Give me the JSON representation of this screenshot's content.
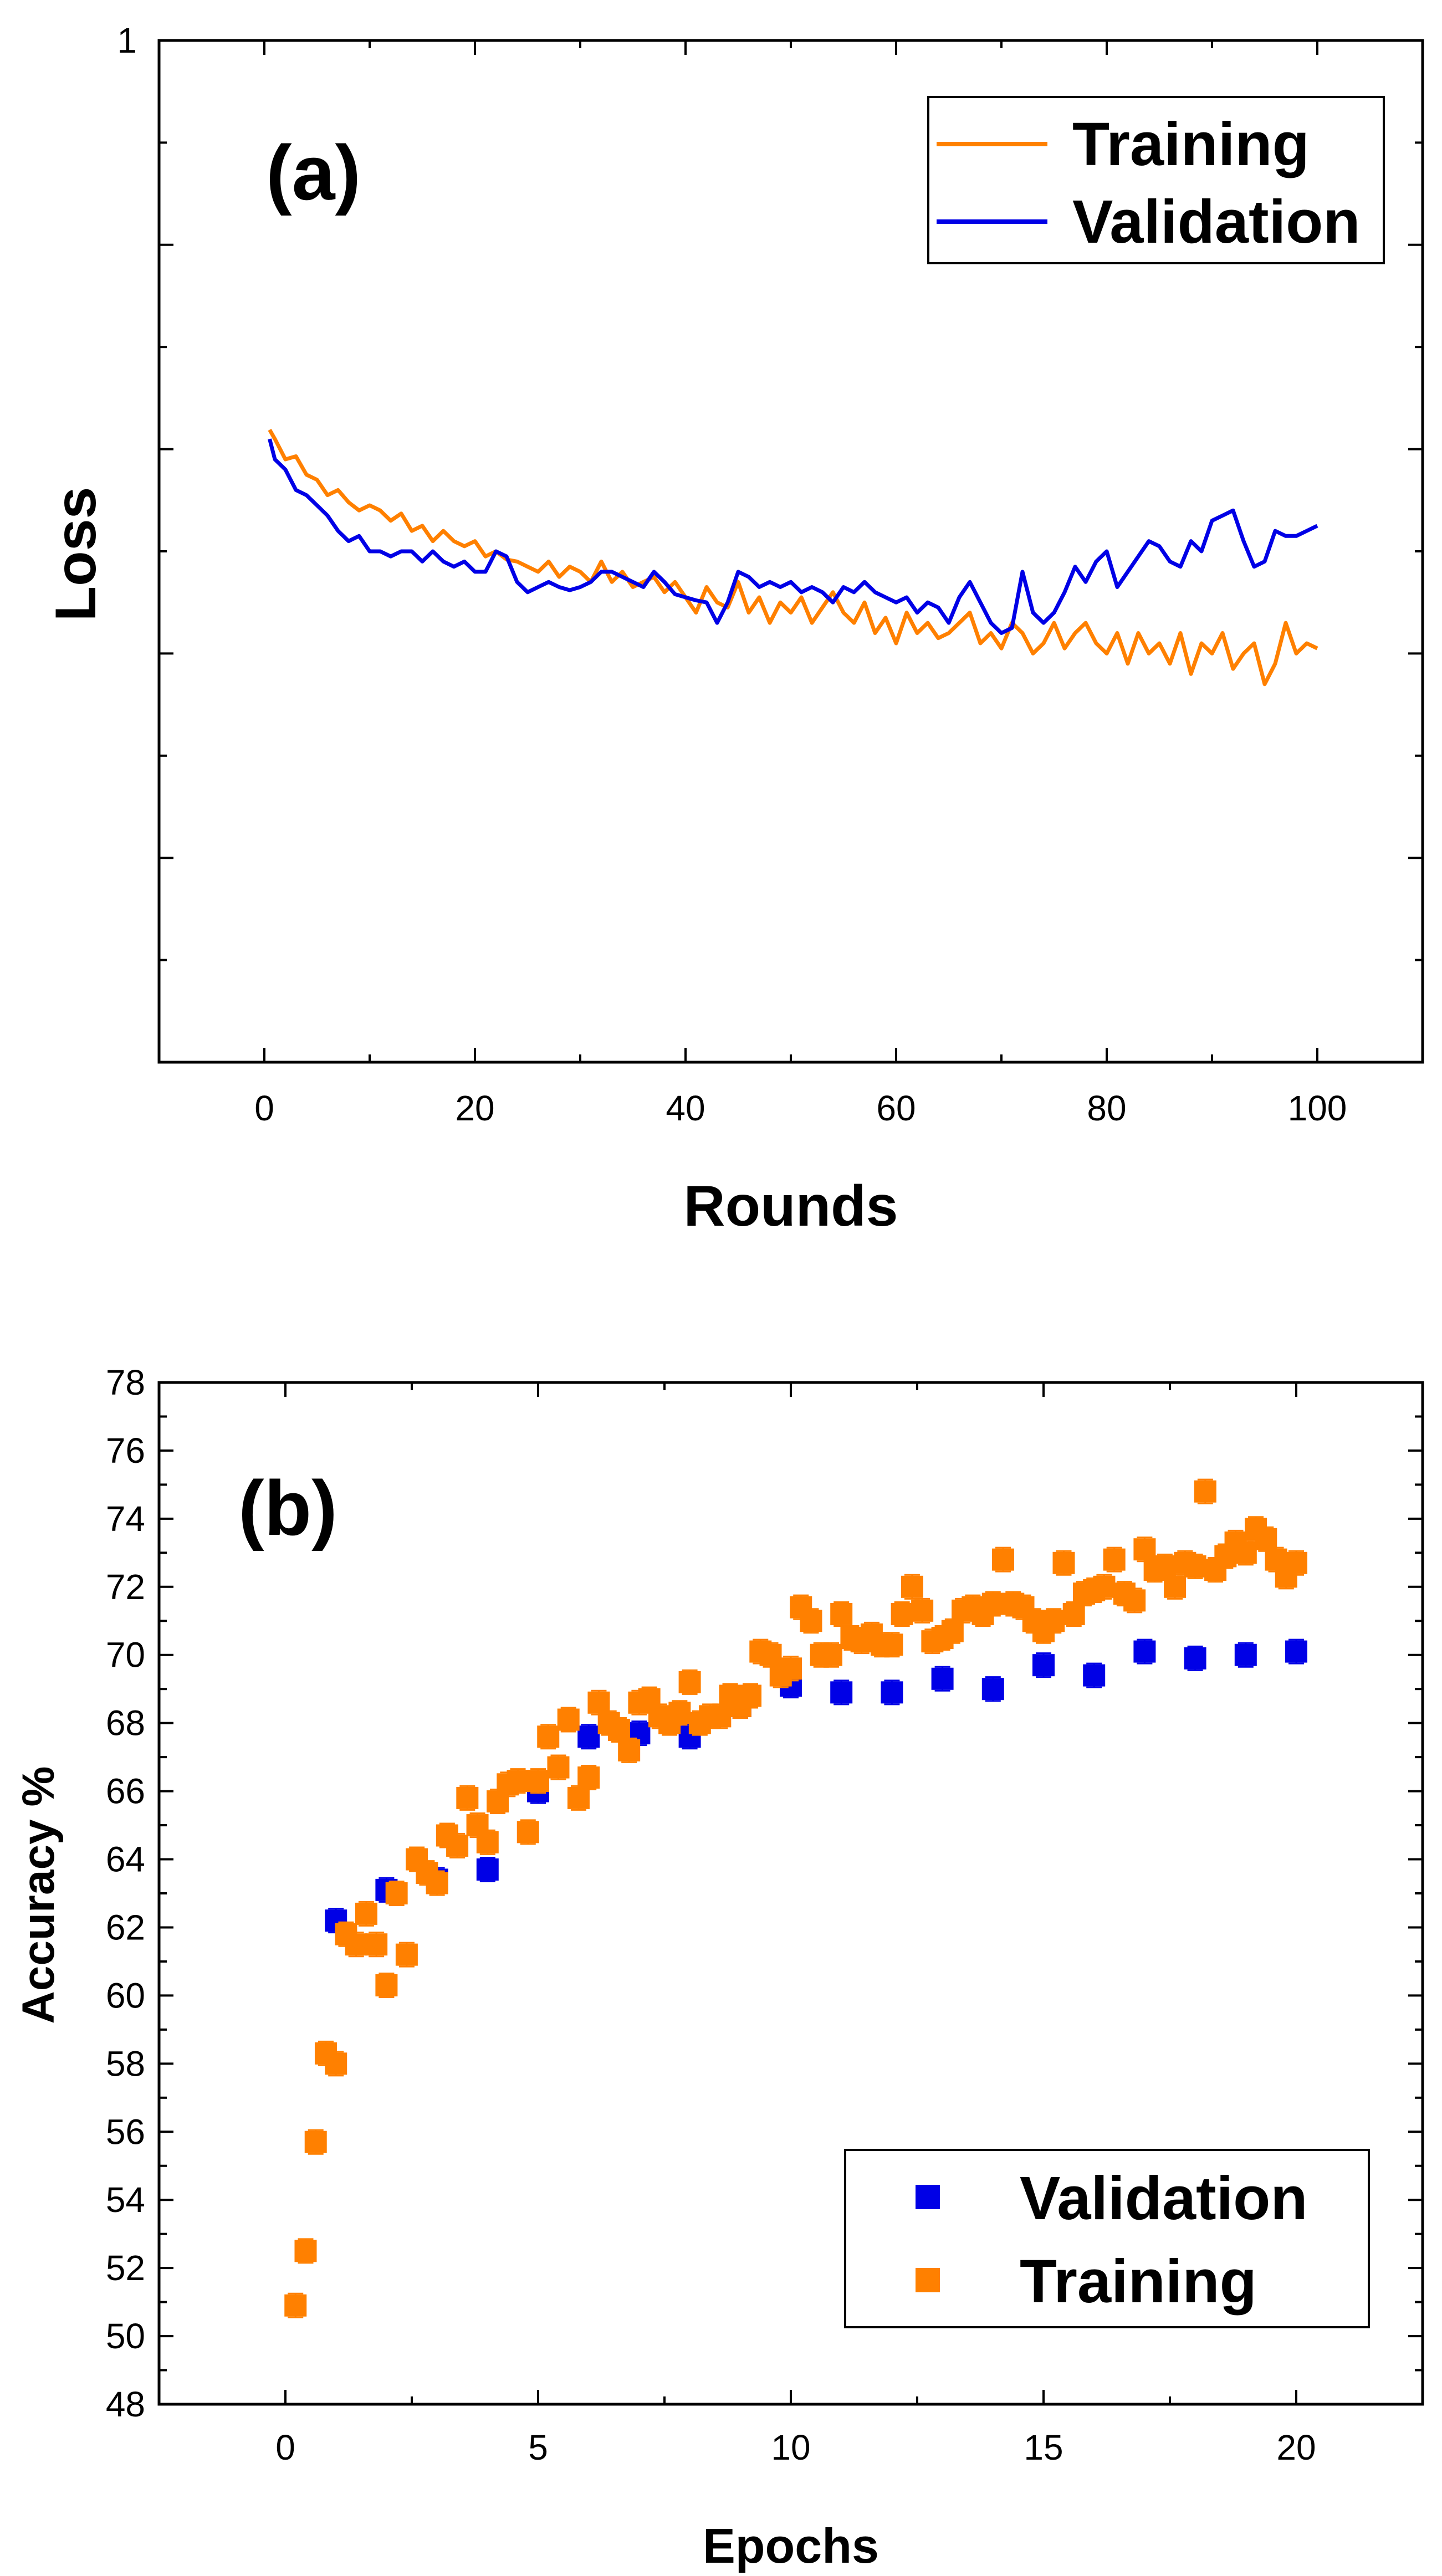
{
  "colors": {
    "training": "#ff8000",
    "validation": "#0000e6",
    "axis": "#000000"
  },
  "chart_data": [
    {
      "type": "line",
      "panel_label": "(a)",
      "xlabel": "Rounds",
      "ylabel": "Loss",
      "xlim": [
        -10,
        110
      ],
      "ylim": [
        0,
        1
      ],
      "x_tick_labels": [
        "0",
        "20",
        "40",
        "60",
        "80",
        "100"
      ],
      "y_tick_labels": [
        "1"
      ],
      "legend": {
        "position": "top-right",
        "entries": [
          "Training",
          "Validation"
        ]
      },
      "series": [
        {
          "name": "Training",
          "x": [
            0.5,
            1,
            2,
            3,
            4,
            5,
            6,
            7,
            8,
            9,
            10,
            11,
            12,
            13,
            14,
            15,
            16,
            17,
            18,
            19,
            20,
            21,
            22,
            23,
            24,
            25,
            26,
            27,
            28,
            29,
            30,
            31,
            32,
            33,
            34,
            35,
            36,
            37,
            38,
            39,
            40,
            41,
            42,
            43,
            44,
            45,
            46,
            47,
            48,
            49,
            50,
            51,
            52,
            53,
            54,
            55,
            56,
            57,
            58,
            59,
            60,
            61,
            62,
            63,
            64,
            65,
            66,
            67,
            68,
            69,
            70,
            71,
            72,
            73,
            74,
            75,
            76,
            77,
            78,
            79,
            80,
            81,
            82,
            83,
            84,
            85,
            86,
            87,
            88,
            89,
            90,
            91,
            92,
            93,
            94,
            95,
            96,
            97,
            98,
            99,
            100
          ],
          "values": [
            0.619,
            0.61,
            0.59,
            0.593,
            0.575,
            0.57,
            0.555,
            0.56,
            0.548,
            0.54,
            0.545,
            0.54,
            0.53,
            0.537,
            0.52,
            0.525,
            0.51,
            0.52,
            0.51,
            0.505,
            0.51,
            0.495,
            0.5,
            0.492,
            0.49,
            0.485,
            0.48,
            0.49,
            0.475,
            0.485,
            0.48,
            0.47,
            0.49,
            0.47,
            0.48,
            0.465,
            0.47,
            0.475,
            0.46,
            0.47,
            0.455,
            0.44,
            0.465,
            0.45,
            0.445,
            0.47,
            0.44,
            0.455,
            0.43,
            0.45,
            0.44,
            0.455,
            0.43,
            0.445,
            0.46,
            0.44,
            0.43,
            0.45,
            0.42,
            0.435,
            0.41,
            0.44,
            0.42,
            0.43,
            0.415,
            0.42,
            0.43,
            0.44,
            0.41,
            0.42,
            0.405,
            0.43,
            0.42,
            0.4,
            0.41,
            0.43,
            0.405,
            0.42,
            0.43,
            0.41,
            0.4,
            0.42,
            0.39,
            0.42,
            0.4,
            0.41,
            0.39,
            0.42,
            0.38,
            0.41,
            0.4,
            0.42,
            0.385,
            0.4,
            0.41,
            0.37,
            0.39,
            0.43,
            0.4,
            0.41,
            0.405
          ]
        },
        {
          "name": "Validation",
          "x": [
            0.5,
            1,
            2,
            3,
            4,
            5,
            6,
            7,
            8,
            9,
            10,
            11,
            12,
            13,
            14,
            15,
            16,
            17,
            18,
            19,
            20,
            21,
            22,
            23,
            24,
            25,
            26,
            27,
            28,
            29,
            30,
            31,
            32,
            33,
            34,
            35,
            36,
            37,
            38,
            39,
            40,
            41,
            42,
            43,
            44,
            45,
            46,
            47,
            48,
            49,
            50,
            51,
            52,
            53,
            54,
            55,
            56,
            57,
            58,
            59,
            60,
            61,
            62,
            63,
            64,
            65,
            66,
            67,
            68,
            69,
            70,
            71,
            72,
            73,
            74,
            75,
            76,
            77,
            78,
            79,
            80,
            81,
            82,
            83,
            84,
            85,
            86,
            87,
            88,
            89,
            90,
            91,
            92,
            93,
            94,
            95,
            96,
            97,
            98,
            99,
            100
          ],
          "values": [
            0.61,
            0.59,
            0.58,
            0.56,
            0.555,
            0.545,
            0.535,
            0.52,
            0.51,
            0.515,
            0.5,
            0.5,
            0.495,
            0.5,
            0.5,
            0.49,
            0.5,
            0.49,
            0.485,
            0.49,
            0.48,
            0.48,
            0.5,
            0.495,
            0.47,
            0.46,
            0.465,
            0.47,
            0.465,
            0.462,
            0.465,
            0.47,
            0.48,
            0.48,
            0.475,
            0.47,
            0.465,
            0.48,
            0.47,
            0.458,
            0.455,
            0.452,
            0.45,
            0.43,
            0.45,
            0.48,
            0.475,
            0.465,
            0.47,
            0.465,
            0.47,
            0.46,
            0.465,
            0.46,
            0.45,
            0.465,
            0.46,
            0.47,
            0.46,
            0.455,
            0.45,
            0.455,
            0.44,
            0.45,
            0.445,
            0.43,
            0.455,
            0.47,
            0.45,
            0.43,
            0.42,
            0.425,
            0.48,
            0.44,
            0.43,
            0.44,
            0.46,
            0.485,
            0.47,
            0.49,
            0.5,
            0.465,
            0.48,
            0.495,
            0.51,
            0.505,
            0.49,
            0.485,
            0.51,
            0.5,
            0.53,
            0.535,
            0.54,
            0.51,
            0.485,
            0.49,
            0.52,
            0.515,
            0.515,
            0.52,
            0.525
          ]
        }
      ]
    },
    {
      "type": "scatter",
      "panel_label": "(b)",
      "xlabel": "Epochs",
      "ylabel": "Accuracy %",
      "xlim": [
        -2.5,
        22.5
      ],
      "ylim": [
        48,
        78
      ],
      "x_tick_labels": [
        "0",
        "5",
        "10",
        "15",
        "20"
      ],
      "y_tick_labels": [
        "48",
        "50",
        "52",
        "54",
        "56",
        "58",
        "60",
        "62",
        "64",
        "66",
        "68",
        "70",
        "72",
        "74",
        "76",
        "78"
      ],
      "legend": {
        "position": "bottom-right",
        "entries": [
          "Validation",
          "Training"
        ]
      },
      "series": [
        {
          "name": "Validation",
          "x": [
            1,
            2,
            3,
            4,
            5,
            6,
            7,
            8,
            9,
            10,
            11,
            12,
            13,
            14,
            15,
            16,
            17,
            18,
            19,
            20
          ],
          "values": [
            62.2,
            63.1,
            63.4,
            63.7,
            66.0,
            67.6,
            67.7,
            67.6,
            68.5,
            69.1,
            68.9,
            68.9,
            69.3,
            69.0,
            69.7,
            69.4,
            70.1,
            69.9,
            70.0,
            70.1
          ]
        },
        {
          "name": "Training",
          "x": [
            0.2,
            0.4,
            0.6,
            0.8,
            1.0,
            1.2,
            1.4,
            1.6,
            1.8,
            2.0,
            2.2,
            2.4,
            2.6,
            2.8,
            3.0,
            3.2,
            3.4,
            3.6,
            3.8,
            4.0,
            4.2,
            4.4,
            4.6,
            4.8,
            5.0,
            5.2,
            5.4,
            5.6,
            5.8,
            6.0,
            6.2,
            6.4,
            6.6,
            6.8,
            7.0,
            7.2,
            7.4,
            7.6,
            7.8,
            8.0,
            8.2,
            8.4,
            8.6,
            8.8,
            9.0,
            9.2,
            9.4,
            9.6,
            9.8,
            10.0,
            10.2,
            10.4,
            10.6,
            10.8,
            11.0,
            11.2,
            11.4,
            11.6,
            11.8,
            12.0,
            12.2,
            12.4,
            12.6,
            12.8,
            13.0,
            13.2,
            13.4,
            13.6,
            13.8,
            14.0,
            14.2,
            14.4,
            14.6,
            14.8,
            15.0,
            15.2,
            15.4,
            15.6,
            15.8,
            16.0,
            16.2,
            16.4,
            16.6,
            16.8,
            17.0,
            17.2,
            17.4,
            17.6,
            17.8,
            18.0,
            18.2,
            18.4,
            18.6,
            18.8,
            19.0,
            19.2,
            19.4,
            19.6,
            19.8,
            20.0
          ],
          "values": [
            50.9,
            52.5,
            55.7,
            58.3,
            58.0,
            61.8,
            61.5,
            62.4,
            61.5,
            60.3,
            63.0,
            61.2,
            64.0,
            63.6,
            63.3,
            64.7,
            64.4,
            65.8,
            65.0,
            64.5,
            65.7,
            66.2,
            66.3,
            64.8,
            66.3,
            67.6,
            66.7,
            68.1,
            65.8,
            66.4,
            68.6,
            68.0,
            67.8,
            67.2,
            68.6,
            68.7,
            68.2,
            68.0,
            68.3,
            69.2,
            68.0,
            68.2,
            68.2,
            68.8,
            68.5,
            68.8,
            70.1,
            70.0,
            69.4,
            69.6,
            71.4,
            71.0,
            70.0,
            70.0,
            71.2,
            70.5,
            70.4,
            70.6,
            70.3,
            70.3,
            71.2,
            72.0,
            71.3,
            70.4,
            70.5,
            70.7,
            71.3,
            71.4,
            71.2,
            71.5,
            72.8,
            71.5,
            71.4,
            71.0,
            70.7,
            71.0,
            72.7,
            71.2,
            71.8,
            71.9,
            72.0,
            72.8,
            71.8,
            71.6,
            73.1,
            72.5,
            72.6,
            72.0,
            72.7,
            72.6,
            74.8,
            72.5,
            72.9,
            73.3,
            73.0,
            73.7,
            73.4,
            72.8,
            72.3,
            72.7
          ]
        }
      ]
    }
  ]
}
